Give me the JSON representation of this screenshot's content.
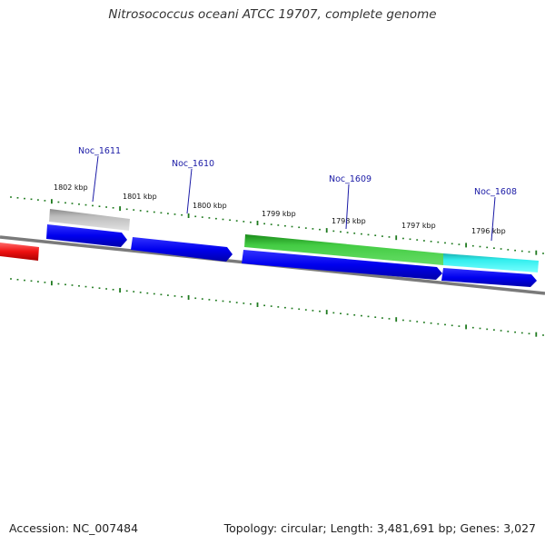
{
  "title": "Nitrosococcus oceani ATCC 19707, complete genome",
  "footer": {
    "accession": "Accession: NC_007484",
    "summary": "Topology: circular; Length: 3,481,691 bp; Genes: 3,027"
  },
  "colors": {
    "backbone": "#808080",
    "cds": "#0000ee",
    "tick": "#1f7a1f",
    "gene_label": "#1a1aa6",
    "red_feature": "#ee1111",
    "grey_feature": "#c0c0c0",
    "green_feature": "#33bb33",
    "cyan_feature": "#22eeee"
  },
  "ticks": {
    "labels": [
      "1802 kbp",
      "1801 kbp",
      "1800 kbp",
      "1799 kbp",
      "1798 kbp",
      "1797 kbp",
      "1796 kbp"
    ]
  },
  "genes": [
    {
      "name": "Noc_1611"
    },
    {
      "name": "Noc_1610"
    },
    {
      "name": "Noc_1609"
    },
    {
      "name": "Noc_1608"
    }
  ]
}
